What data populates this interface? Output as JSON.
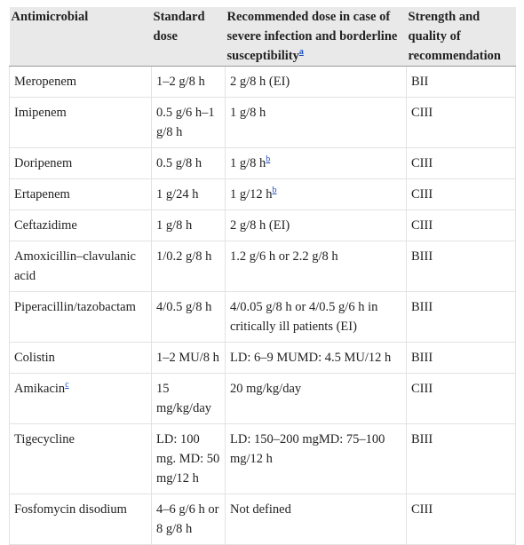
{
  "headers": {
    "antimicrobial": "Antimicrobial",
    "standard_dose": "Standard dose",
    "recommended_dose": "Recommended dose in case of severe infection and borderline susceptibility",
    "recommended_dose_note": "a",
    "strength": "Strength and quality of recommendation"
  },
  "rows": [
    {
      "drug": "Meropenem",
      "drug_note": "",
      "standard": "1–2 g/8 h",
      "recommended": "2 g/8 h (EI)",
      "rec_note": "",
      "strength": "BII"
    },
    {
      "drug": "Imipenem",
      "drug_note": "",
      "standard": "0.5 g/6 h–1 g/8 h",
      "recommended": "1 g/8 h",
      "rec_note": "",
      "strength": "CIII"
    },
    {
      "drug": "Doripenem",
      "drug_note": "",
      "standard": "0.5 g/8 h",
      "recommended": "1 g/8 h",
      "rec_note": "b",
      "strength": "CIII"
    },
    {
      "drug": "Ertapenem",
      "drug_note": "",
      "standard": "1 g/24 h",
      "recommended": "1 g/12 h",
      "rec_note": "b",
      "strength": "CIII"
    },
    {
      "drug": "Ceftazidime",
      "drug_note": "",
      "standard": "1 g/8 h",
      "recommended": "2 g/8 h (EI)",
      "rec_note": "",
      "strength": "CIII"
    },
    {
      "drug": "Amoxicillin–clavulanic acid",
      "drug_note": "",
      "standard": "1/0.2 g/8 h",
      "recommended": "1.2 g/6 h or 2.2 g/8 h",
      "rec_note": "",
      "strength": "BIII"
    },
    {
      "drug": "Piperacillin/tazobactam",
      "drug_note": "",
      "standard": "4/0.5 g/8 h",
      "recommended": "4/0.05 g/8 h or 4/0.5 g/6 h in critically ill patients (EI)",
      "rec_note": "",
      "strength": "BIII"
    },
    {
      "drug": "Colistin",
      "drug_note": "",
      "standard": "1–2 MU/8 h",
      "recommended": "LD: 6–9 MUMD: 4.5 MU/12 h",
      "rec_note": "",
      "strength": "BIII"
    },
    {
      "drug": "Amikacin",
      "drug_note": "c",
      "standard": "15 mg/kg/day",
      "recommended": "20 mg/kg/day",
      "rec_note": "",
      "strength": "CIII"
    },
    {
      "drug": "Tigecycline",
      "drug_note": "",
      "standard": "LD: 100 mg. MD: 50 mg/12 h",
      "recommended": "LD: 150–200 mgMD: 75–100 mg/12 h",
      "rec_note": "",
      "strength": "BIII"
    },
    {
      "drug": "Fosfomycin disodium",
      "drug_note": "",
      "standard": "4–6 g/6 h or 8 g/8 h",
      "recommended": "Not defined",
      "rec_note": "",
      "strength": "CIII"
    }
  ]
}
